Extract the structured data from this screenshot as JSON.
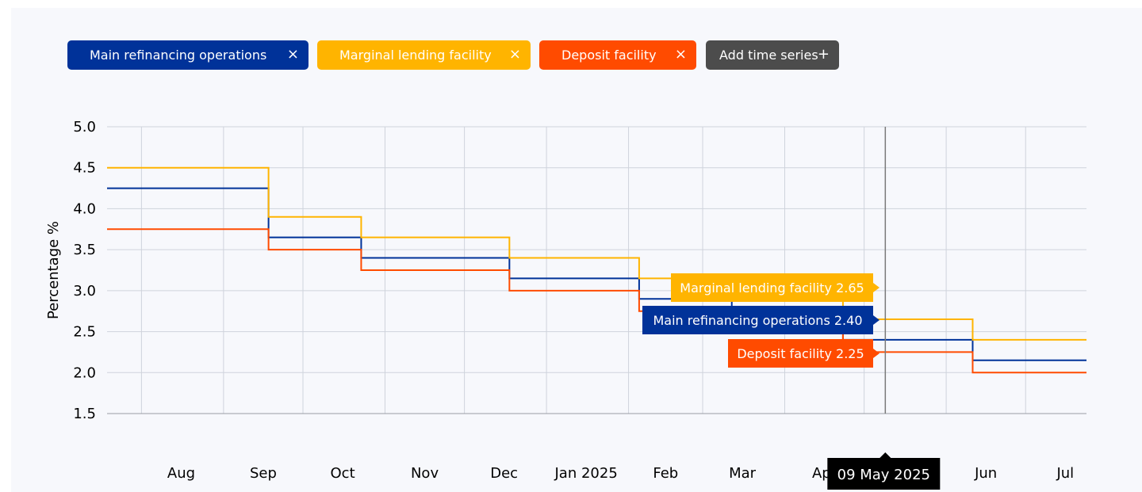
{
  "chips": [
    {
      "label": "Main refinancing operations",
      "remove": "×",
      "color": "#003299"
    },
    {
      "label": "Marginal lending facility",
      "remove": "×",
      "color": "#ffb400"
    },
    {
      "label": "Deposit facility",
      "remove": "×",
      "color": "#ff4b00"
    }
  ],
  "add_series": {
    "label": "Add time series",
    "icon": "+",
    "color": "#4c4c4c"
  },
  "chart_data": {
    "type": "line",
    "step": true,
    "ylabel": "Percentage %",
    "ylim": [
      1.5,
      5.0
    ],
    "yticks": [
      "5.0",
      "4.5",
      "4.0",
      "3.5",
      "3.0",
      "2.5",
      "2.0",
      "1.5"
    ],
    "x_tick_labels": [
      "Aug",
      "Sep",
      "Oct",
      "Nov",
      "Dec",
      "Jan 2025",
      "Feb",
      "Mar",
      "Apr",
      "Jun",
      "Jul"
    ],
    "grid": true,
    "series": [
      {
        "name": "Main refinancing operations",
        "color": "#003299",
        "steps": [
          [
            "2024-07-19",
            4.25
          ],
          [
            "2024-09-18",
            3.65
          ],
          [
            "2024-10-23",
            3.4
          ],
          [
            "2024-12-18",
            3.15
          ],
          [
            "2025-02-05",
            2.9
          ],
          [
            "2025-03-12",
            2.65
          ],
          [
            "2025-04-23",
            2.4
          ],
          [
            "2025-06-11",
            2.15
          ],
          [
            "2025-07-24",
            2.15
          ]
        ]
      },
      {
        "name": "Marginal lending facility",
        "color": "#ffb400",
        "steps": [
          [
            "2024-07-19",
            4.5
          ],
          [
            "2024-09-18",
            3.9
          ],
          [
            "2024-10-23",
            3.65
          ],
          [
            "2024-12-18",
            3.4
          ],
          [
            "2025-02-05",
            3.15
          ],
          [
            "2025-03-12",
            2.9
          ],
          [
            "2025-04-23",
            2.65
          ],
          [
            "2025-06-11",
            2.4
          ],
          [
            "2025-07-24",
            2.4
          ]
        ]
      },
      {
        "name": "Deposit facility",
        "color": "#ff4b00",
        "steps": [
          [
            "2024-07-19",
            3.75
          ],
          [
            "2024-09-18",
            3.5
          ],
          [
            "2024-10-23",
            3.25
          ],
          [
            "2024-12-18",
            3.0
          ],
          [
            "2025-02-05",
            2.75
          ],
          [
            "2025-03-12",
            2.5
          ],
          [
            "2025-04-23",
            2.25
          ],
          [
            "2025-06-11",
            2.0
          ],
          [
            "2025-07-24",
            2.0
          ]
        ]
      }
    ],
    "hover": {
      "date": "09 May 2025",
      "tooltips": [
        {
          "label": "Marginal lending facility 2.65",
          "color": "#ffb400"
        },
        {
          "label": "Main refinancing operations 2.40",
          "color": "#003299"
        },
        {
          "label": "Deposit facility 2.25",
          "color": "#ff4b00"
        }
      ]
    }
  }
}
